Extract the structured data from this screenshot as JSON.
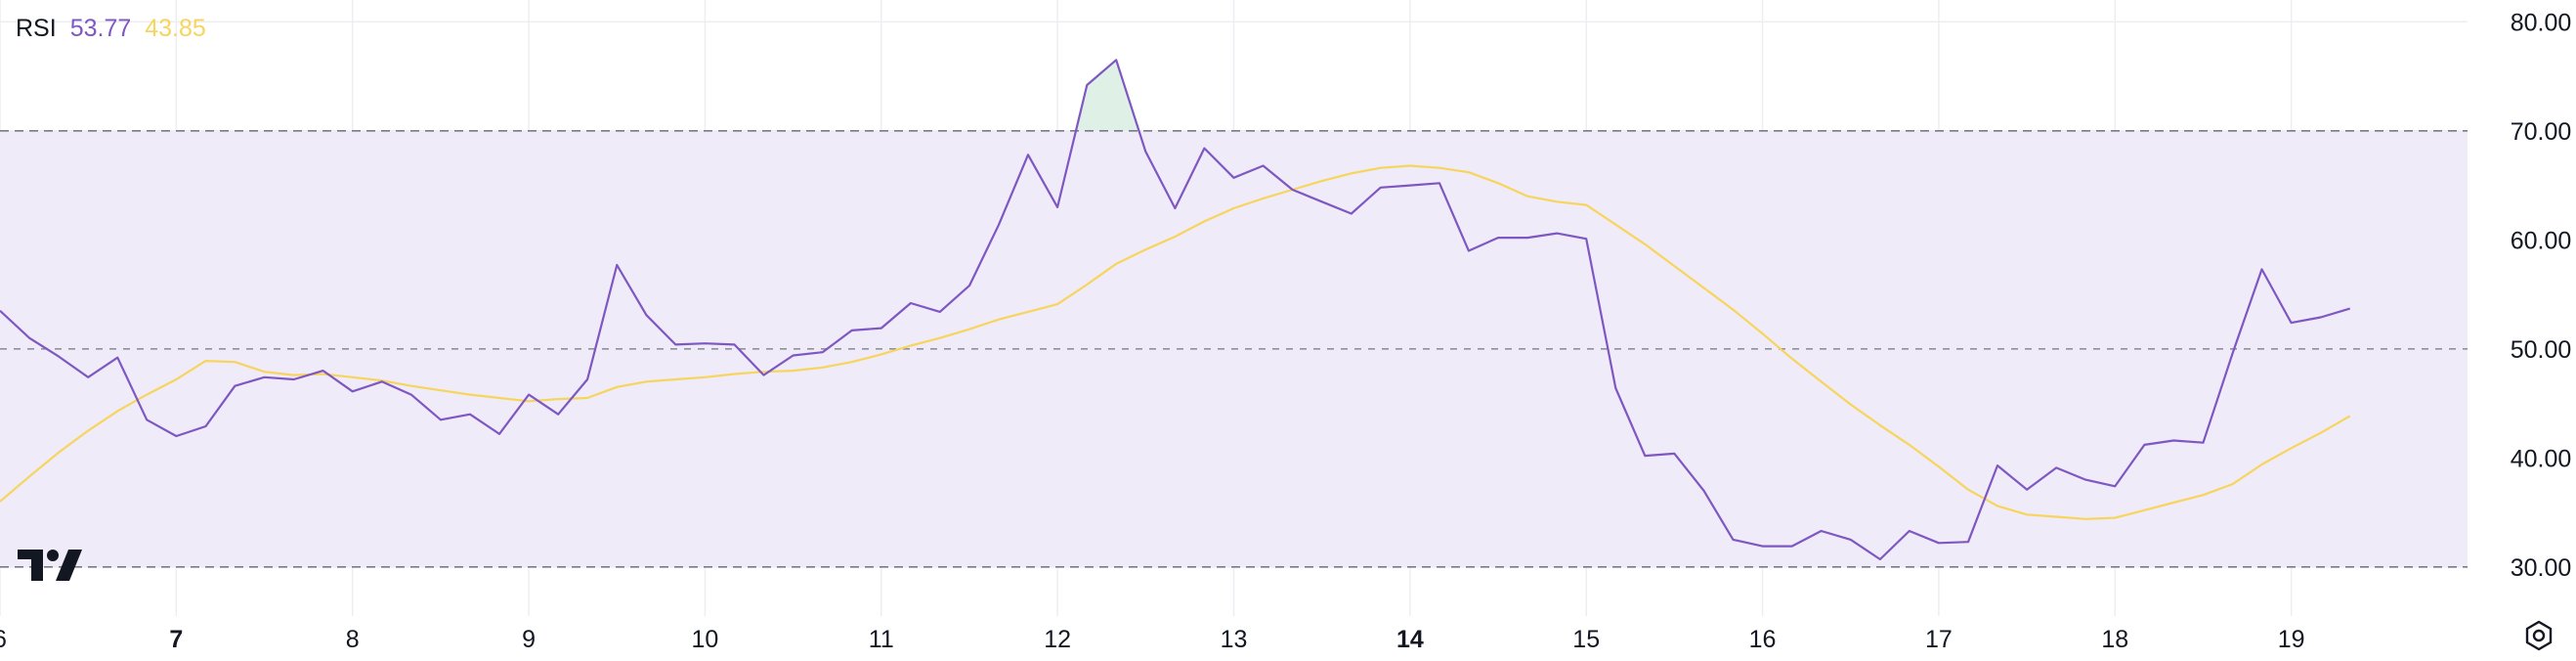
{
  "legend": {
    "name": "RSI",
    "rsi_value": "53.77",
    "ma_value": "43.85"
  },
  "colors": {
    "rsi_line": "#7e57c2",
    "ma_line": "#f7d55d",
    "band_fill": "#efebf8",
    "overbought_fill": "#dff1e6",
    "grid": "#eeeef2",
    "dashed": "#787b86"
  },
  "icons": {
    "logo": "tradingview-logo-icon",
    "settings": "settings-gear-icon"
  },
  "chart_data": {
    "type": "line",
    "ylim": [
      25.5,
      82
    ],
    "xlim": [
      6,
      20.0
    ],
    "y_ticks": [
      "80.00",
      "70.00",
      "60.00",
      "50.00",
      "40.00",
      "30.00"
    ],
    "y_tick_values": [
      80,
      70,
      60,
      50,
      40,
      30
    ],
    "x_ticks": [
      {
        "label": "6",
        "value": 6,
        "bold": false
      },
      {
        "label": "7",
        "value": 7,
        "bold": true
      },
      {
        "label": "8",
        "value": 8,
        "bold": false
      },
      {
        "label": "9",
        "value": 9,
        "bold": false
      },
      {
        "label": "10",
        "value": 10,
        "bold": false
      },
      {
        "label": "11",
        "value": 11,
        "bold": false
      },
      {
        "label": "12",
        "value": 12,
        "bold": false
      },
      {
        "label": "13",
        "value": 13,
        "bold": false
      },
      {
        "label": "14",
        "value": 14,
        "bold": true
      },
      {
        "label": "15",
        "value": 15,
        "bold": false
      },
      {
        "label": "16",
        "value": 16,
        "bold": false
      },
      {
        "label": "17",
        "value": 17,
        "bold": false
      },
      {
        "label": "18",
        "value": 18,
        "bold": false
      },
      {
        "label": "19",
        "value": 19,
        "bold": false
      }
    ],
    "bands": {
      "upper": 70,
      "middle": 50,
      "lower": 30
    },
    "series": [
      {
        "key": "rsi",
        "x": [
          6.0,
          6.167,
          6.333,
          6.5,
          6.667,
          6.833,
          7.0,
          7.167,
          7.333,
          7.5,
          7.667,
          7.833,
          8.0,
          8.167,
          8.333,
          8.5,
          8.667,
          8.833,
          9.0,
          9.167,
          9.333,
          9.5,
          9.667,
          9.833,
          10.0,
          10.167,
          10.333,
          10.5,
          10.667,
          10.833,
          11.0,
          11.167,
          11.333,
          11.5,
          11.667,
          11.833,
          12.0,
          12.167,
          12.333,
          12.5,
          12.667,
          12.833,
          13.0,
          13.167,
          13.333,
          13.5,
          13.667,
          13.833,
          14.0,
          14.167,
          14.333,
          14.5,
          14.667,
          14.833,
          15.0,
          15.167,
          15.333,
          15.5,
          15.667,
          15.833,
          16.0,
          16.167,
          16.333,
          16.5,
          16.667,
          16.833,
          17.0,
          17.167,
          17.333,
          17.5,
          17.667,
          17.833,
          18.0,
          18.167,
          18.333,
          18.5,
          18.667,
          18.833,
          19.0,
          19.167,
          19.333
        ],
        "y": [
          53.5,
          51.0,
          49.3,
          47.4,
          49.2,
          43.5,
          42.0,
          42.9,
          46.6,
          47.4,
          47.2,
          48.0,
          46.1,
          47.0,
          45.8,
          43.5,
          44.0,
          42.2,
          45.8,
          44.0,
          47.2,
          57.7,
          53.1,
          50.4,
          50.5,
          50.4,
          47.6,
          49.4,
          49.7,
          51.7,
          51.9,
          54.2,
          53.4,
          55.8,
          61.4,
          67.8,
          63.0,
          74.2,
          76.5,
          68.1,
          62.9,
          68.4,
          65.7,
          66.8,
          64.6,
          63.5,
          62.4,
          64.8,
          65.0,
          65.2,
          59.0,
          60.2,
          60.2,
          60.6,
          60.1,
          46.4,
          40.2,
          40.4,
          37.0,
          32.5,
          31.9,
          31.9,
          33.3,
          32.5,
          30.7,
          33.3,
          32.2,
          32.3,
          39.3,
          37.1,
          39.1,
          38.0,
          37.4,
          41.2,
          41.6,
          41.4,
          49.6,
          57.3,
          52.4,
          52.9,
          53.7
        ]
      },
      {
        "key": "ma",
        "x": [
          6.0,
          6.167,
          6.333,
          6.5,
          6.667,
          6.833,
          7.0,
          7.167,
          7.333,
          7.5,
          7.667,
          7.833,
          8.0,
          8.167,
          8.333,
          8.5,
          8.667,
          8.833,
          9.0,
          9.167,
          9.333,
          9.5,
          9.667,
          9.833,
          10.0,
          10.167,
          10.333,
          10.5,
          10.667,
          10.833,
          11.0,
          11.167,
          11.333,
          11.5,
          11.667,
          11.833,
          12.0,
          12.167,
          12.333,
          12.5,
          12.667,
          12.833,
          13.0,
          13.167,
          13.333,
          13.5,
          13.667,
          13.833,
          14.0,
          14.167,
          14.333,
          14.5,
          14.667,
          14.833,
          15.0,
          15.167,
          15.333,
          15.5,
          15.667,
          15.833,
          16.0,
          16.167,
          16.333,
          16.5,
          16.667,
          16.833,
          17.0,
          17.167,
          17.333,
          17.5,
          17.667,
          17.833,
          18.0,
          18.167,
          18.333,
          18.5,
          18.667,
          18.833,
          19.0,
          19.167,
          19.333
        ],
        "y": [
          36.0,
          38.3,
          40.5,
          42.5,
          44.3,
          45.8,
          47.2,
          48.9,
          48.8,
          47.9,
          47.6,
          47.7,
          47.4,
          47.1,
          46.6,
          46.2,
          45.8,
          45.5,
          45.2,
          45.4,
          45.5,
          46.5,
          47.0,
          47.2,
          47.4,
          47.7,
          47.9,
          48.0,
          48.3,
          48.8,
          49.5,
          50.3,
          51.0,
          51.8,
          52.7,
          53.4,
          54.1,
          55.9,
          57.8,
          59.1,
          60.3,
          61.7,
          62.9,
          63.8,
          64.6,
          65.4,
          66.1,
          66.6,
          66.8,
          66.6,
          66.2,
          65.2,
          64.0,
          63.5,
          63.2,
          61.4,
          59.6,
          57.6,
          55.6,
          53.6,
          51.4,
          49.1,
          47.0,
          44.9,
          43.0,
          41.2,
          39.2,
          37.1,
          35.6,
          34.8,
          34.6,
          34.4,
          34.5,
          35.2,
          35.9,
          36.6,
          37.6,
          39.4,
          40.9,
          42.3,
          43.85
        ]
      }
    ]
  }
}
